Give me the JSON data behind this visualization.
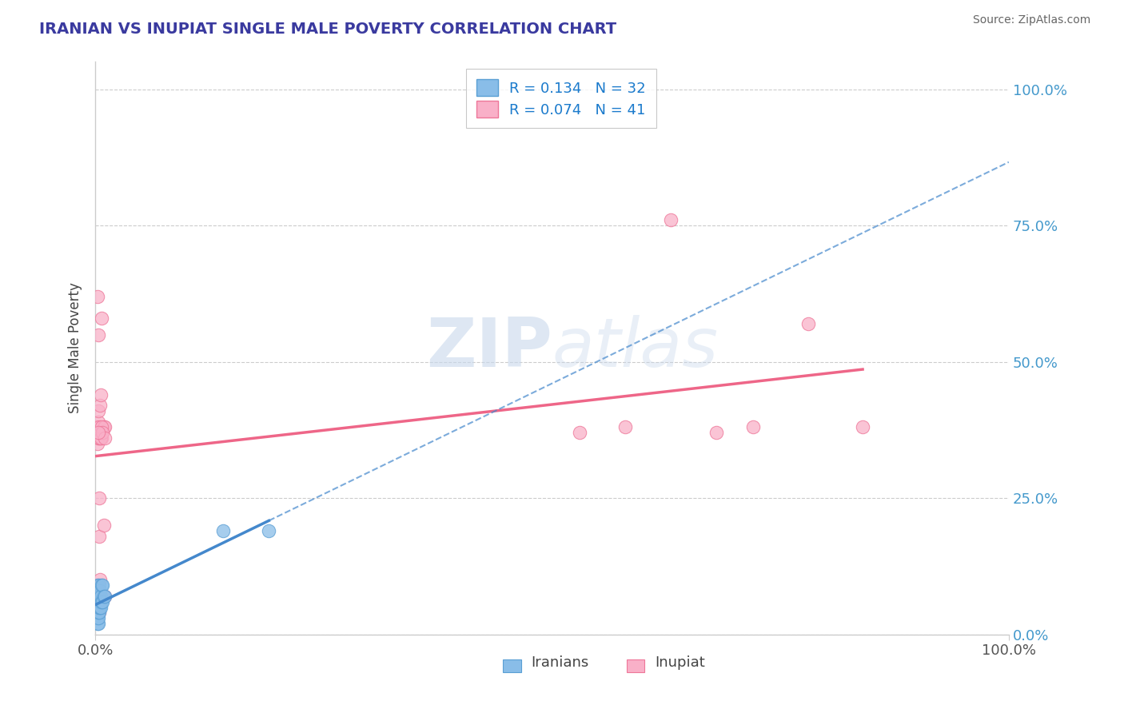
{
  "title": "IRANIAN VS INUPIAT SINGLE MALE POVERTY CORRELATION CHART",
  "source": "Source: ZipAtlas.com",
  "ylabel": "Single Male Poverty",
  "title_color": "#3a3a9f",
  "source_color": "#666666",
  "axis_label_color": "#444444",
  "background_color": "#ffffff",
  "legend_r1": "R = 0.134",
  "legend_n1": "N = 32",
  "legend_r2": "R = 0.074",
  "legend_n2": "N = 41",
  "legend_color": "#1a7acc",
  "iranians_color": "#89bde8",
  "inupiat_color": "#f9b0c8",
  "iranians_edge": "#5a9fd4",
  "inupiat_edge": "#ee7799",
  "trend_iranian_color": "#4488cc",
  "trend_inupiat_color": "#ee6688",
  "grid_color": "#cccccc",
  "right_tick_color": "#4499cc",
  "watermark_color": "#c8d8ec",
  "iranians_x": [
    0.001,
    0.001,
    0.001,
    0.002,
    0.002,
    0.002,
    0.002,
    0.002,
    0.002,
    0.003,
    0.003,
    0.003,
    0.003,
    0.003,
    0.003,
    0.004,
    0.004,
    0.004,
    0.004,
    0.005,
    0.005,
    0.005,
    0.006,
    0.006,
    0.007,
    0.007,
    0.008,
    0.008,
    0.009,
    0.01,
    0.14,
    0.19
  ],
  "iranians_y": [
    0.04,
    0.05,
    0.06,
    0.02,
    0.03,
    0.04,
    0.05,
    0.07,
    0.09,
    0.02,
    0.03,
    0.04,
    0.05,
    0.06,
    0.08,
    0.04,
    0.05,
    0.07,
    0.09,
    0.05,
    0.06,
    0.08,
    0.05,
    0.07,
    0.06,
    0.09,
    0.06,
    0.09,
    0.07,
    0.07,
    0.19,
    0.19
  ],
  "inupiat_x": [
    0.001,
    0.001,
    0.002,
    0.002,
    0.002,
    0.003,
    0.003,
    0.003,
    0.003,
    0.004,
    0.004,
    0.004,
    0.005,
    0.005,
    0.005,
    0.006,
    0.006,
    0.007,
    0.007,
    0.008,
    0.009,
    0.01,
    0.01,
    0.002,
    0.003,
    0.004,
    0.005,
    0.006,
    0.007,
    0.008,
    0.009,
    0.01,
    0.003,
    0.004,
    0.53,
    0.58,
    0.63,
    0.68,
    0.72,
    0.78,
    0.84
  ],
  "inupiat_y": [
    0.37,
    0.38,
    0.35,
    0.38,
    0.62,
    0.36,
    0.39,
    0.41,
    0.55,
    0.36,
    0.38,
    0.04,
    0.37,
    0.42,
    0.06,
    0.37,
    0.44,
    0.36,
    0.58,
    0.37,
    0.38,
    0.38,
    0.07,
    0.09,
    0.08,
    0.18,
    0.1,
    0.36,
    0.38,
    0.37,
    0.2,
    0.36,
    0.37,
    0.25,
    0.37,
    0.38,
    0.76,
    0.37,
    0.38,
    0.57,
    0.38
  ],
  "xlim": [
    0,
    1.0
  ],
  "ylim": [
    0,
    1.05
  ],
  "yticks": [
    0.0,
    0.25,
    0.5,
    0.75,
    1.0
  ],
  "xtick_labels_show": [
    0.0,
    1.0
  ],
  "bottom_labels": [
    "Iranians",
    "Inupiat"
  ]
}
